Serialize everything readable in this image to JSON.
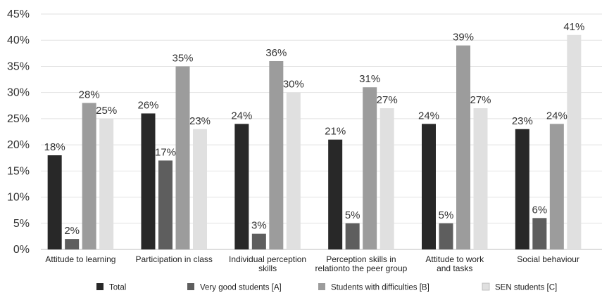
{
  "chart_data": {
    "type": "bar",
    "categories": [
      [
        "Attitude to learning"
      ],
      [
        "Participation in class"
      ],
      [
        "Individual perception",
        "skills"
      ],
      [
        "Perception skills in",
        "relationto the peer group"
      ],
      [
        "Attitude to work",
        "and tasks"
      ],
      [
        "Social behaviour"
      ]
    ],
    "series": [
      {
        "name": "Total",
        "color": "#282828",
        "values": [
          18,
          26,
          24,
          21,
          24,
          23
        ]
      },
      {
        "name": "Very good students [A]",
        "color": "#5e5e5e",
        "values": [
          2,
          17,
          3,
          5,
          5,
          6
        ]
      },
      {
        "name": "Students with difficulties [B]",
        "color": "#9c9c9c",
        "values": [
          28,
          35,
          36,
          31,
          39,
          24
        ]
      },
      {
        "name": "SEN students [C]",
        "color": "#e0e0e0",
        "values": [
          25,
          23,
          30,
          27,
          27,
          41
        ]
      }
    ],
    "ylim": [
      0,
      45
    ],
    "yticks": [
      0,
      5,
      10,
      15,
      20,
      25,
      30,
      35,
      40,
      45
    ],
    "tick_suffix": "%",
    "value_suffix": "%",
    "grid": true,
    "legend_position": "bottom",
    "title": "",
    "xlabel": "",
    "ylabel": ""
  }
}
